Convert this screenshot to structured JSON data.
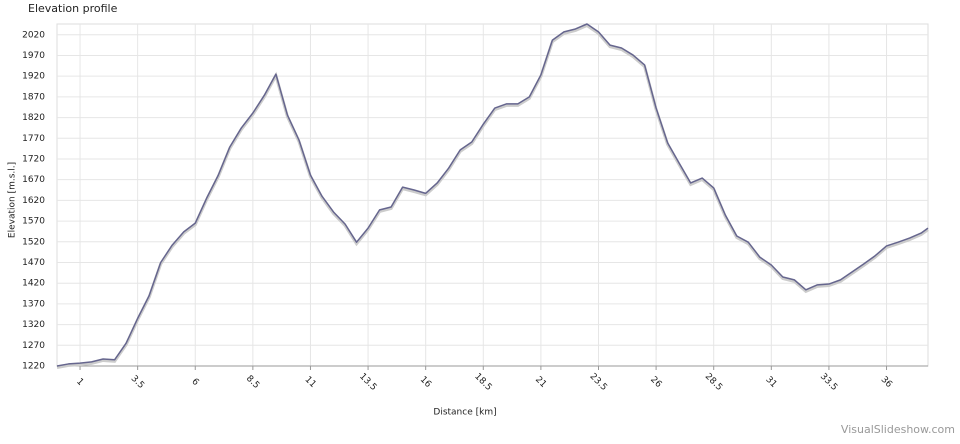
{
  "chart_data": {
    "type": "line",
    "title": "Elevation profile",
    "xlabel": "Distance [km]",
    "ylabel": "Elevation [m.s.l.]",
    "x": [
      0,
      0.5,
      1,
      1.5,
      2,
      2.5,
      3,
      3.5,
      4,
      4.5,
      5,
      5.5,
      6,
      6.5,
      7,
      7.5,
      8,
      8.5,
      9,
      9.5,
      10,
      10.5,
      11,
      11.5,
      12,
      12.5,
      13,
      13.5,
      14,
      14.5,
      15,
      15.5,
      16,
      16.5,
      17,
      17.5,
      18,
      18.5,
      19,
      19.5,
      20,
      20.5,
      21,
      21.5,
      22,
      22.5,
      23,
      23.5,
      24,
      24.5,
      25,
      25.5,
      26,
      26.5,
      27,
      27.5,
      28,
      28.5,
      29,
      29.5,
      30,
      30.5,
      31,
      31.5,
      32,
      32.5,
      33,
      33.5,
      34,
      34.5,
      35,
      35.5,
      36,
      36.5,
      37,
      37.5,
      37.8
    ],
    "series": [
      {
        "name": "Elevation",
        "color": "#66668e",
        "values": [
          1220,
          1225,
          1227,
          1230,
          1237,
          1235,
          1275,
          1335,
          1390,
          1470,
          1512,
          1544,
          1565,
          1626,
          1681,
          1749,
          1795,
          1831,
          1874,
          1925,
          1826,
          1766,
          1681,
          1630,
          1592,
          1563,
          1519,
          1553,
          1597,
          1604,
          1652,
          1645,
          1637,
          1662,
          1698,
          1742,
          1761,
          1804,
          1843,
          1853,
          1853,
          1870,
          1923,
          2007,
          2027,
          2034,
          2046,
          2027,
          1995,
          1988,
          1971,
          1947,
          1843,
          1759,
          1710,
          1662,
          1674,
          1650,
          1585,
          1534,
          1519,
          1483,
          1464,
          1435,
          1428,
          1404,
          1416,
          1418,
          1428,
          1447,
          1466,
          1486,
          1510,
          1519,
          1529,
          1541,
          1553
        ]
      }
    ],
    "xlim": [
      0,
      37.8
    ],
    "xticks": [
      1,
      3.5,
      6,
      8.5,
      11,
      13.5,
      16,
      18.5,
      21,
      23.5,
      26,
      28.5,
      31,
      33.5,
      36
    ],
    "ylim": [
      1220,
      2046
    ],
    "yticks": [
      1220,
      1270,
      1320,
      1370,
      1420,
      1470,
      1520,
      1570,
      1620,
      1670,
      1720,
      1770,
      1820,
      1870,
      1920,
      1970,
      2020
    ],
    "grid": true,
    "watermark": "VisualSlideshow.com"
  }
}
